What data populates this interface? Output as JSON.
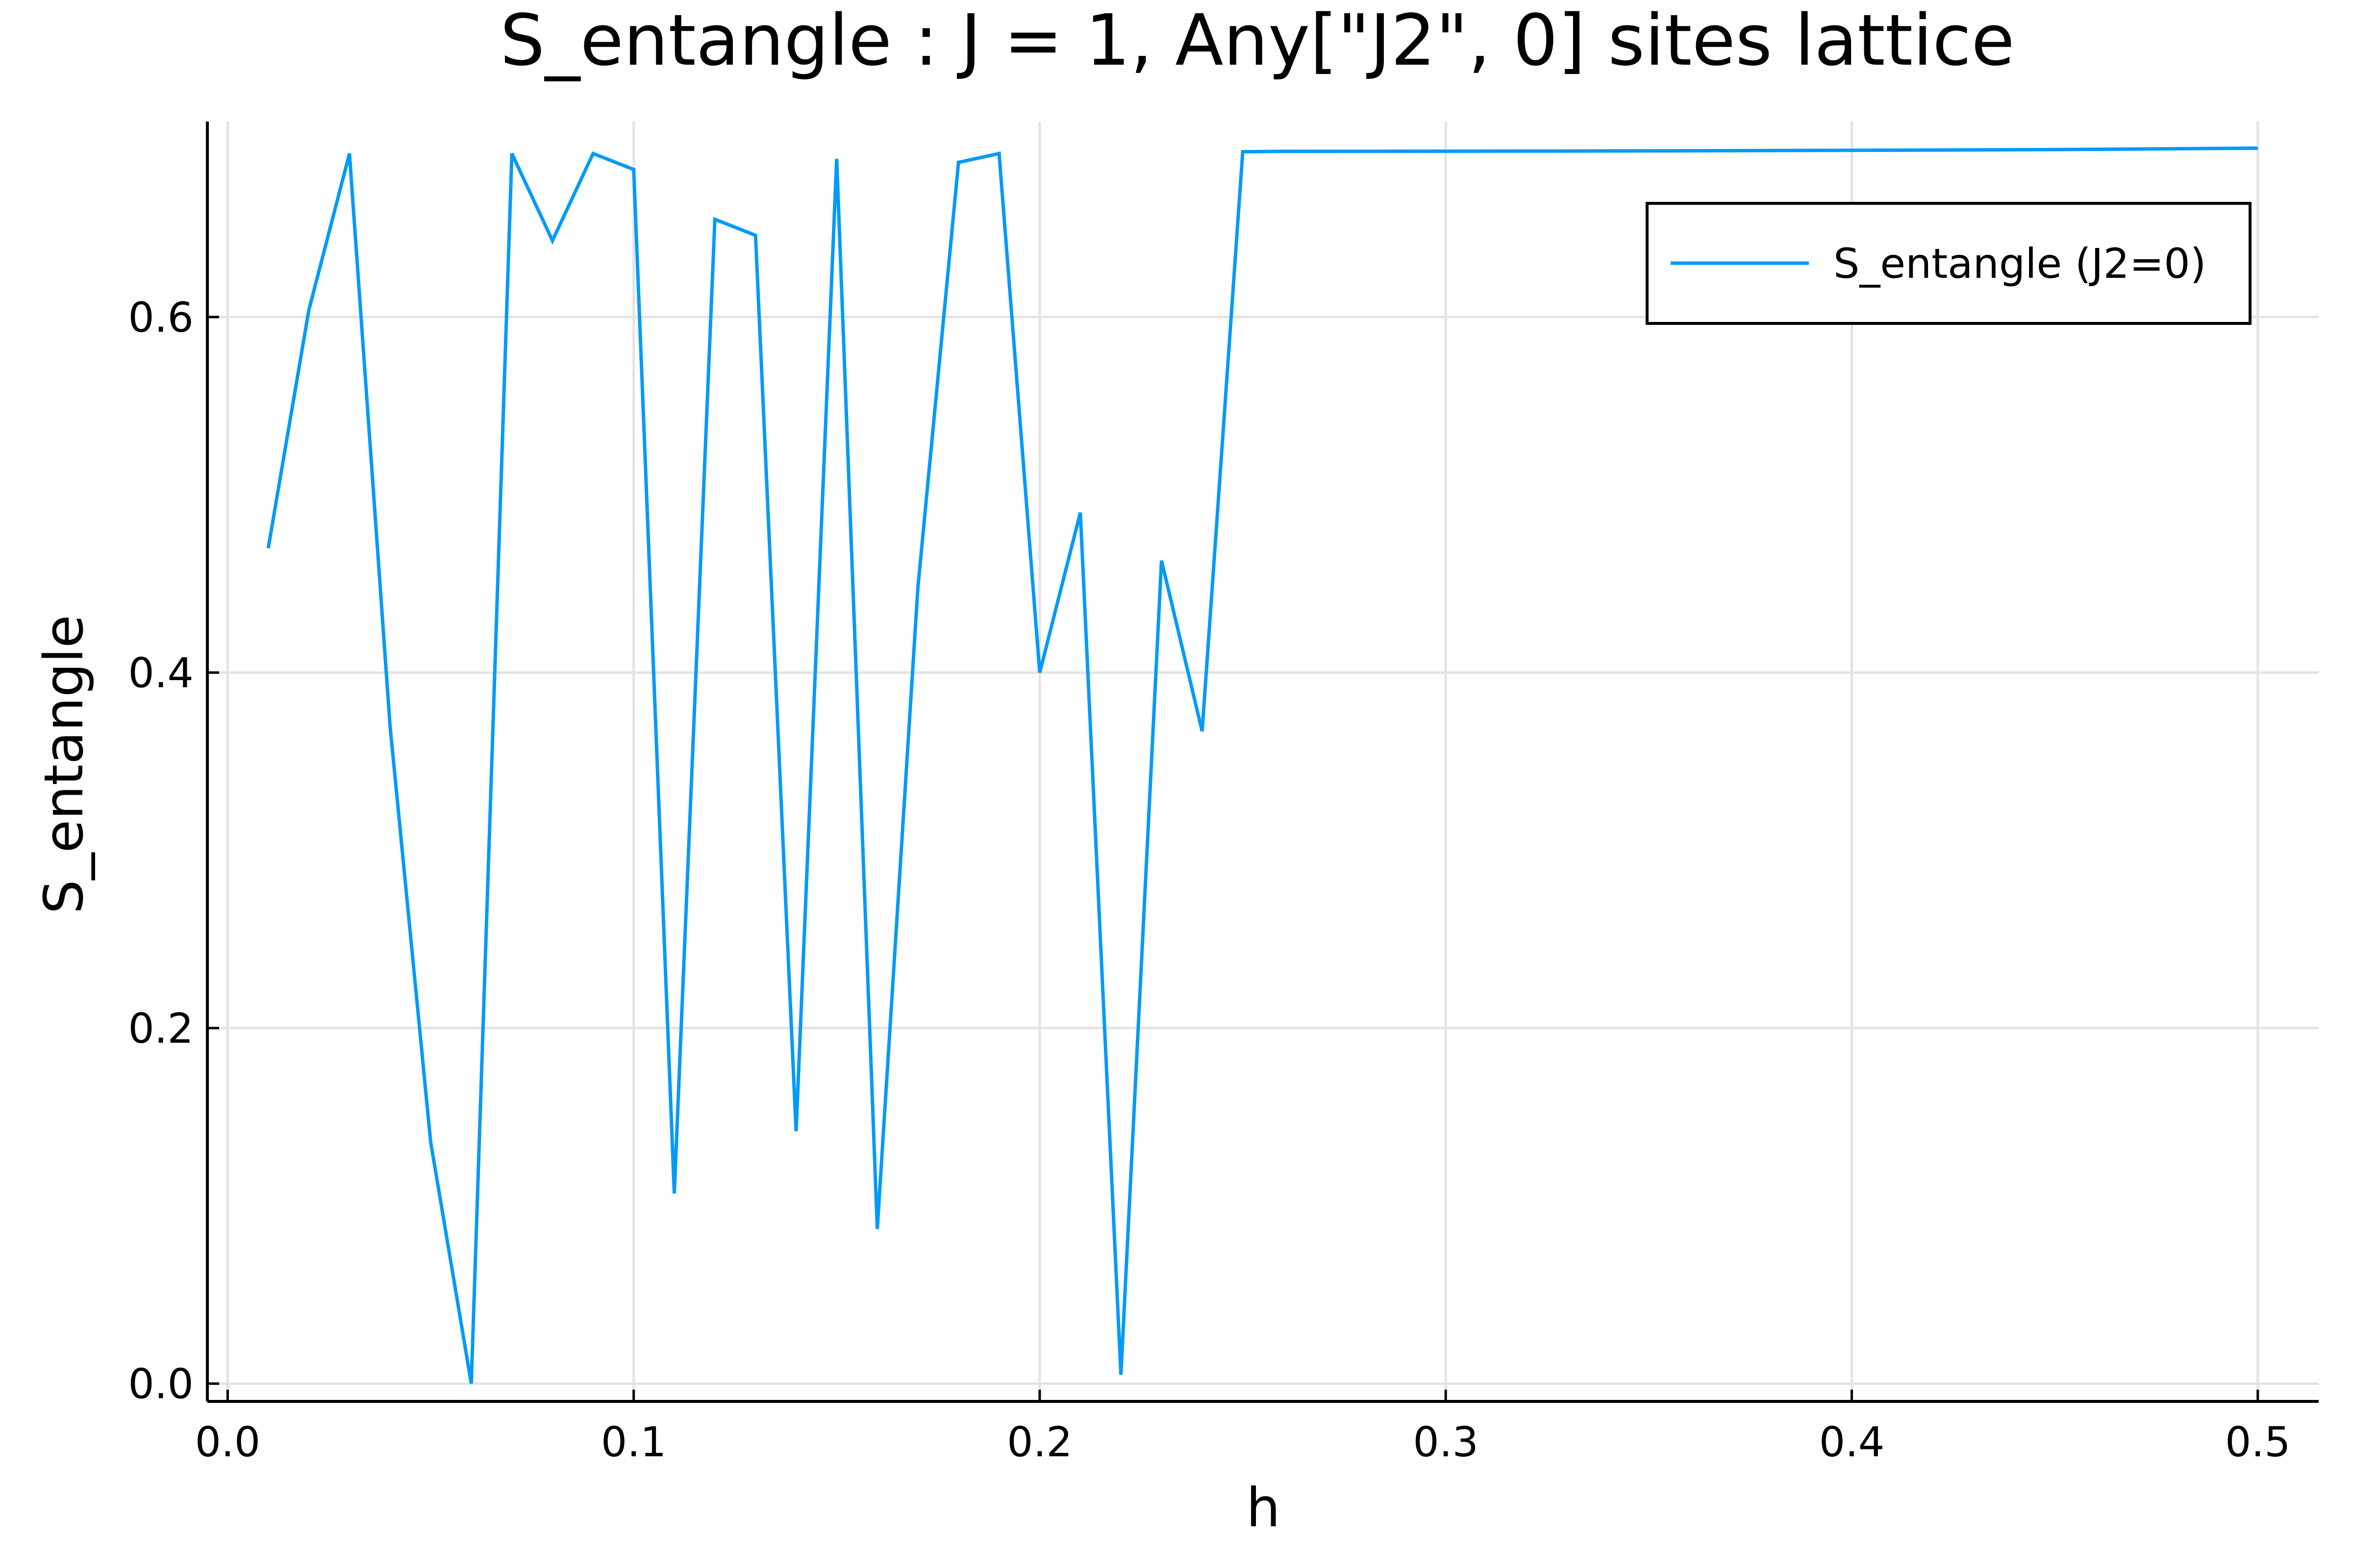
{
  "chart_data": {
    "type": "line",
    "title": "S_entangle : J = 1, Any[\"J2\", 0] sites lattice",
    "xlabel": "h",
    "ylabel": "S_entangle",
    "xlim": [
      -0.005,
      0.515
    ],
    "ylim": [
      -0.01,
      0.71
    ],
    "xticks": [
      0.0,
      0.1,
      0.2,
      0.3,
      0.4,
      0.5
    ],
    "xtick_labels": [
      "0.0",
      "0.1",
      "0.2",
      "0.3",
      "0.4",
      "0.5"
    ],
    "yticks": [
      0.0,
      0.2,
      0.4,
      0.6
    ],
    "ytick_labels": [
      "0.0",
      "0.2",
      "0.4",
      "0.6"
    ],
    "grid": true,
    "legend_position": "top-right",
    "series": [
      {
        "name": "S_entangle (J2=0)",
        "color": "#009af9",
        "x": [
          0.01,
          0.02,
          0.03,
          0.04,
          0.05,
          0.06,
          0.07,
          0.08,
          0.09,
          0.1,
          0.11,
          0.12,
          0.13,
          0.14,
          0.15,
          0.16,
          0.17,
          0.18,
          0.19,
          0.2,
          0.21,
          0.22,
          0.23,
          0.24,
          0.25,
          0.26,
          0.3,
          0.35,
          0.4,
          0.45,
          0.5
        ],
        "y": [
          0.47,
          0.604,
          0.692,
          0.37,
          0.136,
          0.0,
          0.692,
          0.643,
          0.692,
          0.683,
          0.107,
          0.655,
          0.646,
          0.142,
          0.689,
          0.087,
          0.448,
          0.687,
          0.692,
          0.4,
          0.49,
          0.005,
          0.463,
          0.367,
          0.693,
          0.6932,
          0.6933,
          0.6935,
          0.6938,
          0.6942,
          0.695
        ]
      }
    ]
  }
}
